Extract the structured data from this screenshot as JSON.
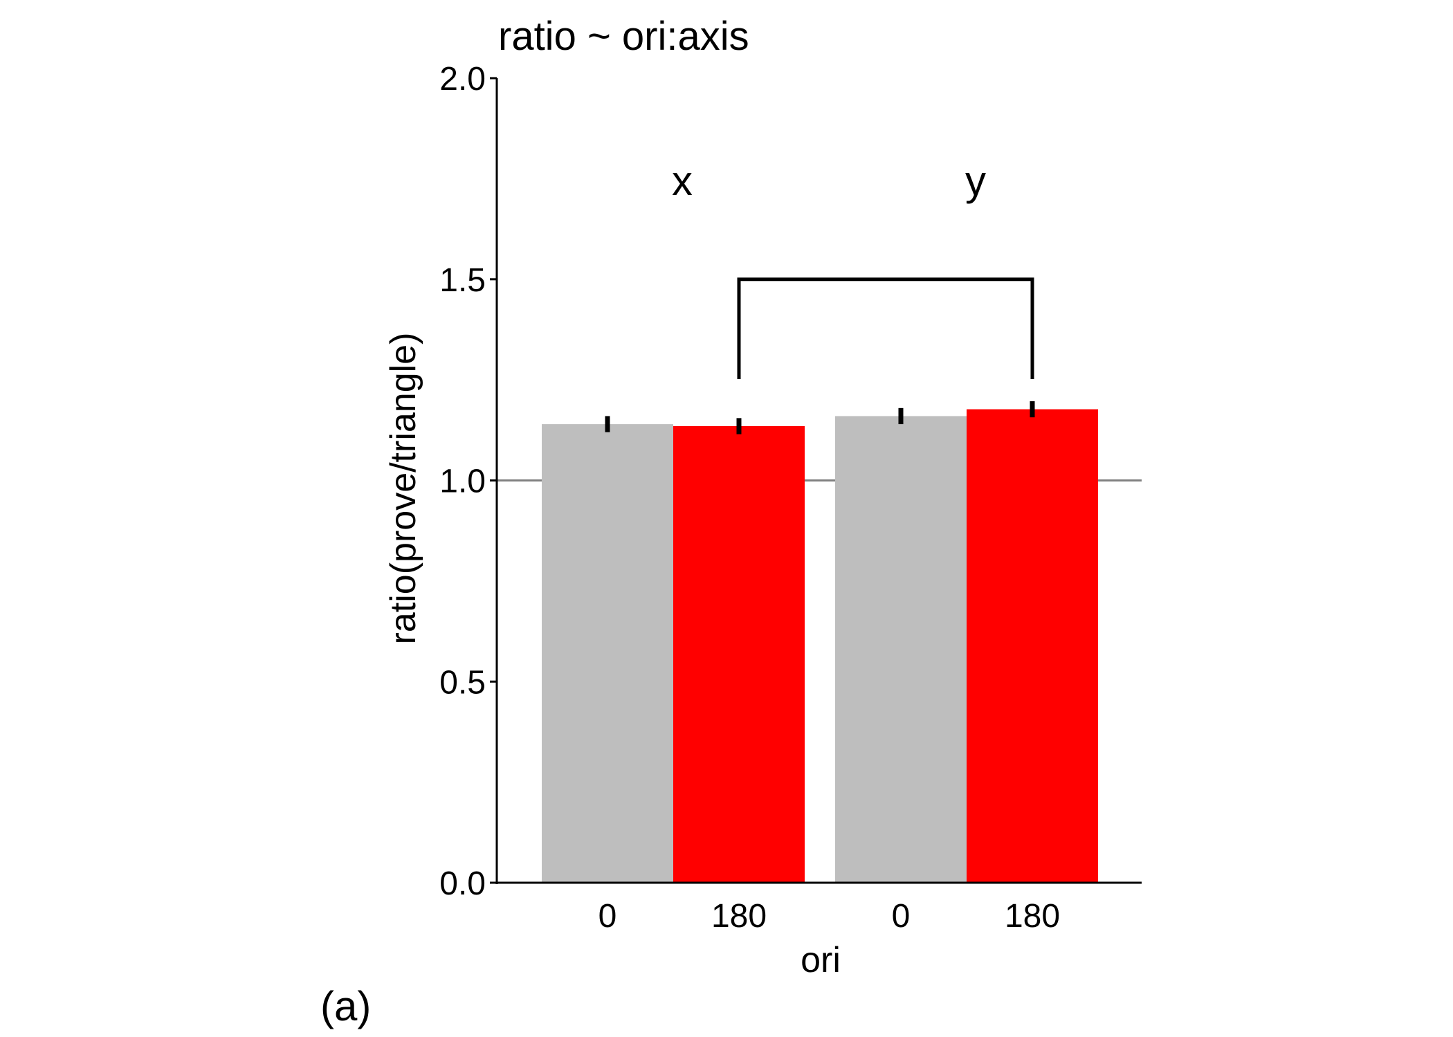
{
  "chart_data": {
    "type": "bar",
    "title": "ratio ~ ori:axis",
    "xlabel": "ori",
    "ylabel": "ratio(prove/triangle)",
    "ylim": [
      0,
      2
    ],
    "y_ticks": [
      "0.0",
      "0.5",
      "1.0",
      "1.5",
      "2.0"
    ],
    "y_tick_values": [
      0,
      0.5,
      1.0,
      1.5,
      2.0
    ],
    "reference_line": 1.0,
    "grid": false,
    "panel_label": "(a)",
    "groups": [
      {
        "label": "x",
        "bars": [
          {
            "category": "0",
            "value": 1.14,
            "error": 0.02,
            "color": "#bebebe"
          },
          {
            "category": "180",
            "value": 1.135,
            "error": 0.02,
            "color": "#ff0000"
          }
        ]
      },
      {
        "label": "y",
        "bars": [
          {
            "category": "0",
            "value": 1.16,
            "error": 0.02,
            "color": "#bebebe"
          },
          {
            "category": "180",
            "value": 1.177,
            "error": 0.02,
            "color": "#ff0000"
          }
        ]
      }
    ],
    "significance_bracket": {
      "from": "x-180",
      "to": "y-180",
      "level": 1.5
    }
  }
}
